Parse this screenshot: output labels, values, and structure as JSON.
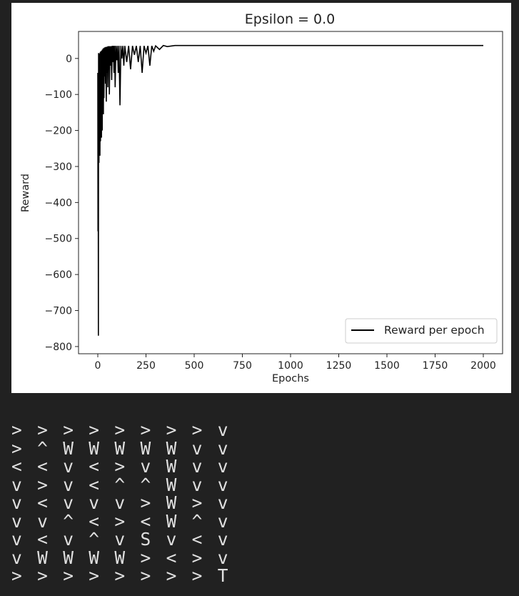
{
  "chart_data": {
    "type": "line",
    "title": "Epsilon = 0.0",
    "xlabel": "Epochs",
    "ylabel": "Reward",
    "xlim": [
      -100,
      2100
    ],
    "ylim": [
      -820,
      75
    ],
    "x_ticks": [
      0,
      250,
      500,
      750,
      1000,
      1250,
      1500,
      1750,
      2000
    ],
    "x_tick_labels": [
      "0",
      "250",
      "500",
      "750",
      "1000",
      "1250",
      "1500",
      "1750",
      "2000"
    ],
    "y_ticks": [
      0,
      -100,
      -200,
      -300,
      -400,
      -500,
      -600,
      -700,
      -800
    ],
    "y_tick_labels": [
      "0",
      "−100",
      "−200",
      "−300",
      "−400",
      "−500",
      "−600",
      "−700",
      "−800"
    ],
    "grid": false,
    "legend_position": "lower-right",
    "series": [
      {
        "name": "Reward per epoch",
        "color": "#000000",
        "x": [
          0,
          1,
          2,
          3,
          4,
          5,
          6,
          7,
          8,
          9,
          10,
          11,
          12,
          13,
          14,
          15,
          16,
          17,
          18,
          19,
          20,
          21,
          22,
          23,
          24,
          25,
          26,
          27,
          28,
          29,
          30,
          32,
          34,
          36,
          38,
          40,
          42,
          44,
          46,
          48,
          50,
          52,
          54,
          56,
          58,
          60,
          63,
          66,
          69,
          72,
          75,
          78,
          81,
          84,
          87,
          90,
          94,
          98,
          102,
          106,
          110,
          115,
          120,
          125,
          130,
          135,
          140,
          150,
          160,
          170,
          180,
          190,
          200,
          210,
          220,
          230,
          240,
          250,
          260,
          270,
          280,
          290,
          300,
          320,
          340,
          360,
          400,
          500,
          750,
          1000,
          1250,
          1500,
          1750,
          2000
        ],
        "y": [
          -40,
          -480,
          -230,
          -770,
          15,
          -150,
          -290,
          -60,
          10,
          -210,
          14,
          -270,
          -100,
          18,
          -230,
          -40,
          20,
          -170,
          10,
          -220,
          22,
          -60,
          15,
          -200,
          25,
          -150,
          20,
          -100,
          28,
          -155,
          26,
          -110,
          30,
          -50,
          31,
          -70,
          32,
          -120,
          32,
          -40,
          33,
          -80,
          34,
          -30,
          34,
          -100,
          34,
          -20,
          34,
          -60,
          35,
          -10,
          35,
          -40,
          35,
          -80,
          35,
          -5,
          35,
          -40,
          35,
          -130,
          35,
          0,
          35,
          -20,
          35,
          -10,
          35,
          -30,
          35,
          10,
          35,
          -10,
          35,
          -40,
          35,
          15,
          35,
          -20,
          35,
          20,
          35,
          25,
          36,
          33,
          36,
          36,
          36,
          36,
          36,
          36,
          36,
          36
        ]
      }
    ]
  },
  "policy_grid": {
    "rows": [
      [
        ">",
        ">",
        ">",
        ">",
        ">",
        ">",
        ">",
        ">",
        "v"
      ],
      [
        ">",
        "^",
        "W",
        "W",
        "W",
        "W",
        "W",
        "v",
        "v"
      ],
      [
        "<",
        "<",
        "v",
        "<",
        ">",
        "v",
        "W",
        "v",
        "v"
      ],
      [
        "v",
        ">",
        "v",
        "<",
        "^",
        "^",
        "W",
        "v",
        "v"
      ],
      [
        "v",
        "<",
        "v",
        "v",
        "v",
        ">",
        "W",
        ">",
        "v"
      ],
      [
        "v",
        "v",
        "^",
        "<",
        ">",
        "<",
        "W",
        "^",
        "v"
      ],
      [
        "v",
        "<",
        "v",
        "^",
        "v",
        "S",
        "v",
        "<",
        "v"
      ],
      [
        "v",
        "W",
        "W",
        "W",
        "W",
        ">",
        "<",
        ">",
        "v"
      ],
      [
        ">",
        ">",
        ">",
        ">",
        ">",
        ">",
        ">",
        ">",
        "T"
      ]
    ]
  }
}
